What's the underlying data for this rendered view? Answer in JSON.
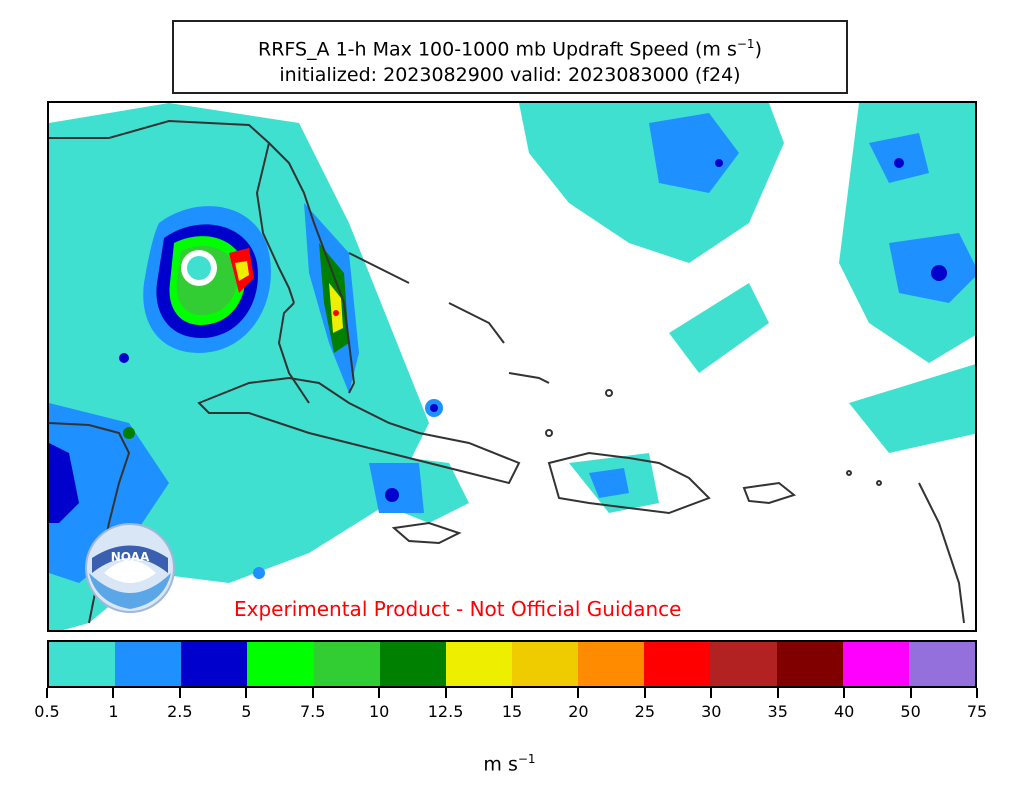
{
  "title": {
    "line1_text": "RRFS_A 1-h Max 100-1000 mb Updraft Speed (m s",
    "line1_exp": "−1",
    "line1_close": ")",
    "line2": "initialized: 2023082900 valid: 2023083000 (f24)"
  },
  "map": {
    "watermark": "Experimental Product - Not Official Guidance",
    "logo_text": "NOAA",
    "logo_ring_text": "NATIONAL OCEANIC AND ATMOSPHERIC ADMINISTRATION U.S. DEPARTMENT OF COMMERCE"
  },
  "colorbar": {
    "units_base": "m s",
    "units_exp": "−1",
    "ticks": [
      "0.5",
      "1",
      "2.5",
      "5",
      "7.5",
      "10",
      "12.5",
      "15",
      "20",
      "25",
      "30",
      "35",
      "40",
      "50",
      "75"
    ],
    "colors": [
      "#40e0d0",
      "#1e90ff",
      "#0000cd",
      "#00ff00",
      "#32cd32",
      "#008000",
      "#eeee00",
      "#eecc00",
      "#ff8c00",
      "#ff0000",
      "#b22222",
      "#800000",
      "#ff00ff",
      "#9370db"
    ]
  }
}
